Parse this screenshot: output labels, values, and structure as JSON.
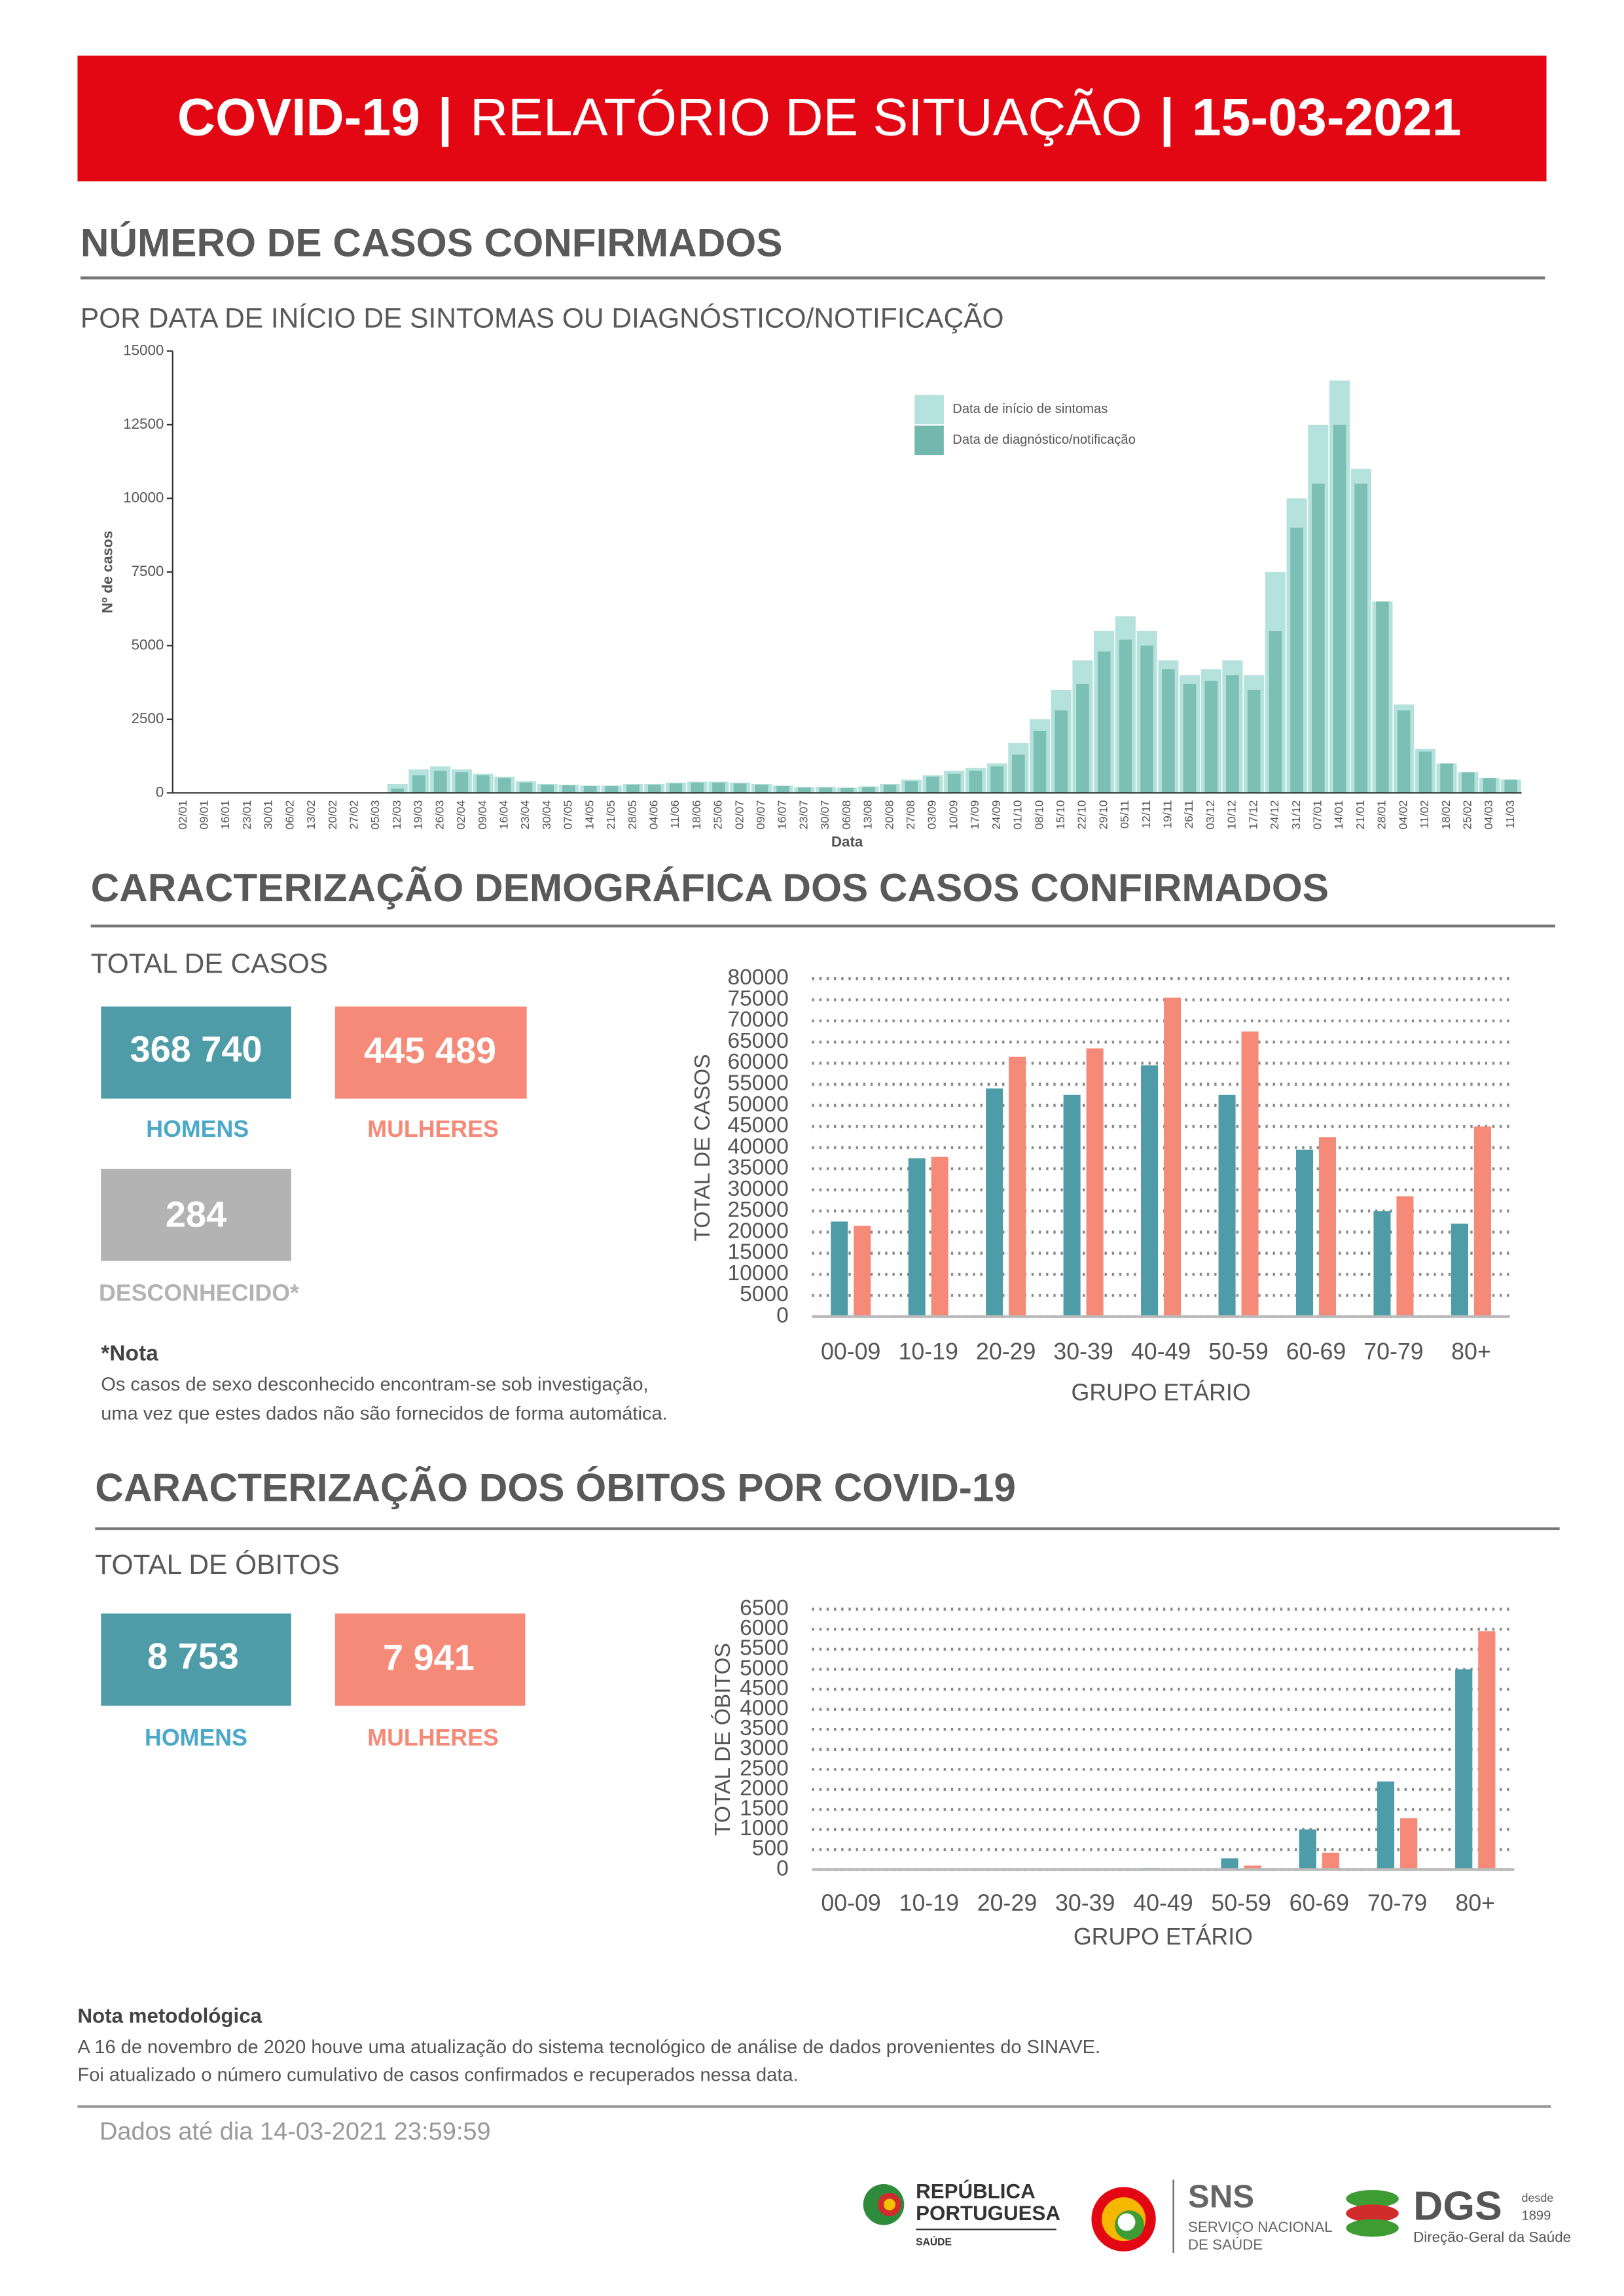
{
  "header": {
    "title": "COVID-19",
    "separator": "|",
    "subtitle": "RELATÓRIO DE SITUAÇÃO",
    "date": "15-03-2021"
  },
  "sections": [
    {
      "title": "NÚMERO DE CASOS CONFIRMADOS",
      "subtitle": "POR DATA DE INÍCIO DE SINTOMAS OU DIAGNÓSTICO/NOTIFICAÇÃO"
    },
    {
      "title": "CARACTERIZAÇÃO DEMOGRÁFICA DOS CASOS CONFIRMADOS",
      "subtitle": "TOTAL DE CASOS",
      "totals": [
        "368 740",
        "445 489"
      ],
      "unknown": {
        "total": "284",
        "label": "DESCONHECIDO*"
      },
      "note": {
        "title": "*Nota",
        "lines": [
          "Os casos de sexo desconhecido encontram-se sob investigação,",
          "uma vez que estes dados não são fornecidos de forma automática."
        ]
      }
    },
    {
      "title": "CARACTERIZAÇÃO DOS ÓBITOS POR COVID-19",
      "subtitle": "TOTAL DE ÓBITOS",
      "totals": [
        "8 753",
        "7 941"
      ]
    }
  ],
  "methodology": {
    "title": "Nota metodológica",
    "lines": [
      "A 16 de novembro de 2020 houve uma atualização do sistema tecnológico de análise de dados provenientes do SINAVE.",
      "Foi atualizado o número cumulativo de casos confirmados e recuperados nessa data."
    ]
  },
  "data_date": "Dados até dia 14-03-2021 23:59:59",
  "footer": {
    "republica": [
      "REPÚBLICA",
      "PORTUGUESA",
      "SAÚDE"
    ],
    "sns": [
      "SNS",
      "SERVIÇO NACIONAL",
      "DE SAÚDE"
    ],
    "dgs": [
      "DGS",
      "desde",
      "1899",
      "Direção-Geral da Saúde"
    ]
  },
  "chart_data": [
    {
      "type": "bar",
      "bar_mode": "overlay",
      "grid": false,
      "legend": "top-right",
      "xlabel": "Data",
      "ylabel": "Nº de casos",
      "categories": [
        "02/01",
        "09/01",
        "16/01",
        "23/01",
        "30/01",
        "06/02",
        "13/02",
        "20/02",
        "27/02",
        "05/03",
        "12/03",
        "19/03",
        "26/03",
        "02/04",
        "09/04",
        "16/04",
        "23/04",
        "30/04",
        "07/05",
        "14/05",
        "21/05",
        "28/05",
        "04/06",
        "11/06",
        "18/06",
        "25/06",
        "02/07",
        "09/07",
        "16/07",
        "23/07",
        "30/07",
        "06/08",
        "13/08",
        "20/08",
        "27/08",
        "03/09",
        "10/09",
        "17/09",
        "24/09",
        "01/10",
        "08/10",
        "15/10",
        "22/10",
        "29/10",
        "05/11",
        "12/11",
        "19/11",
        "26/11",
        "03/12",
        "10/12",
        "17/12",
        "24/12",
        "31/12",
        "07/01",
        "14/01",
        "21/01",
        "28/01",
        "04/02",
        "11/02",
        "18/02",
        "25/02",
        "04/03",
        "11/03"
      ],
      "series": [
        {
          "name": "Data de início de sintomas",
          "color": "#b5e2dc",
          "values": [
            0,
            0,
            0,
            0,
            0,
            0,
            0,
            0,
            0,
            20,
            300,
            800,
            900,
            800,
            650,
            550,
            400,
            300,
            280,
            250,
            250,
            300,
            300,
            350,
            380,
            380,
            350,
            300,
            250,
            200,
            200,
            180,
            220,
            300,
            450,
            600,
            750,
            850,
            1000,
            1700,
            2500,
            3500,
            4500,
            5500,
            6000,
            5500,
            4500,
            4000,
            4200,
            4500,
            4000,
            7500,
            10000,
            12500,
            14000,
            11000,
            6500,
            3000,
            1500,
            1000,
            700,
            500,
            450
          ]
        },
        {
          "name": "Data de diagnóstico/notificação",
          "color": "#72b8ae",
          "values": [
            0,
            0,
            0,
            0,
            0,
            0,
            0,
            0,
            0,
            10,
            150,
            600,
            750,
            700,
            600,
            500,
            350,
            280,
            260,
            230,
            230,
            280,
            280,
            320,
            350,
            350,
            320,
            280,
            230,
            180,
            180,
            170,
            200,
            280,
            400,
            550,
            650,
            750,
            900,
            1300,
            2100,
            2800,
            3700,
            4800,
            5200,
            5000,
            4200,
            3700,
            3800,
            4000,
            3500,
            5500,
            9000,
            10500,
            12500,
            10500,
            6500,
            2800,
            1400,
            1000,
            700,
            500,
            450
          ]
        }
      ],
      "ylim": [
        0,
        15000
      ],
      "yticks": [
        0,
        2500,
        5000,
        7500,
        10000,
        12500,
        15000
      ]
    },
    {
      "type": "bar",
      "bar_mode": "grouped",
      "grid": true,
      "xlabel": "GRUPO ETÁRIO",
      "ylabel": "TOTAL DE CASOS",
      "categories": [
        "00-09",
        "10-19",
        "20-29",
        "30-39",
        "40-49",
        "50-59",
        "60-69",
        "70-79",
        "80+"
      ],
      "series": [
        {
          "name": "HOMENS",
          "color": "#4e9ca7",
          "values": [
            22500,
            37500,
            54000,
            52500,
            59500,
            52500,
            39500,
            25000,
            22000
          ]
        },
        {
          "name": "MULHERES",
          "color": "#f48a77",
          "values": [
            21500,
            37800,
            61500,
            63500,
            75500,
            67500,
            42500,
            28500,
            45000
          ]
        }
      ],
      "ylim": [
        0,
        80000
      ],
      "yticks": [
        0,
        5000,
        10000,
        15000,
        20000,
        25000,
        30000,
        35000,
        40000,
        45000,
        50000,
        55000,
        60000,
        65000,
        70000,
        75000,
        80000
      ]
    },
    {
      "type": "bar",
      "bar_mode": "grouped",
      "grid": true,
      "xlabel": "GRUPO ETÁRIO",
      "ylabel": "TOTAL DE ÓBITOS",
      "categories": [
        "00-09",
        "10-19",
        "20-29",
        "30-39",
        "40-49",
        "50-59",
        "60-69",
        "70-79",
        "80+"
      ],
      "series": [
        {
          "name": "HOMENS",
          "color": "#4e9ca7",
          "values": [
            0,
            0,
            2,
            10,
            40,
            280,
            1000,
            2200,
            5000
          ]
        },
        {
          "name": "MULHERES",
          "color": "#f48a77",
          "values": [
            0,
            0,
            2,
            5,
            15,
            100,
            420,
            1280,
            5950
          ]
        }
      ],
      "ylim": [
        0,
        6500
      ],
      "yticks": [
        0,
        500,
        1000,
        1500,
        2000,
        2500,
        3000,
        3500,
        4000,
        4500,
        5000,
        5500,
        6000,
        6500
      ]
    }
  ]
}
